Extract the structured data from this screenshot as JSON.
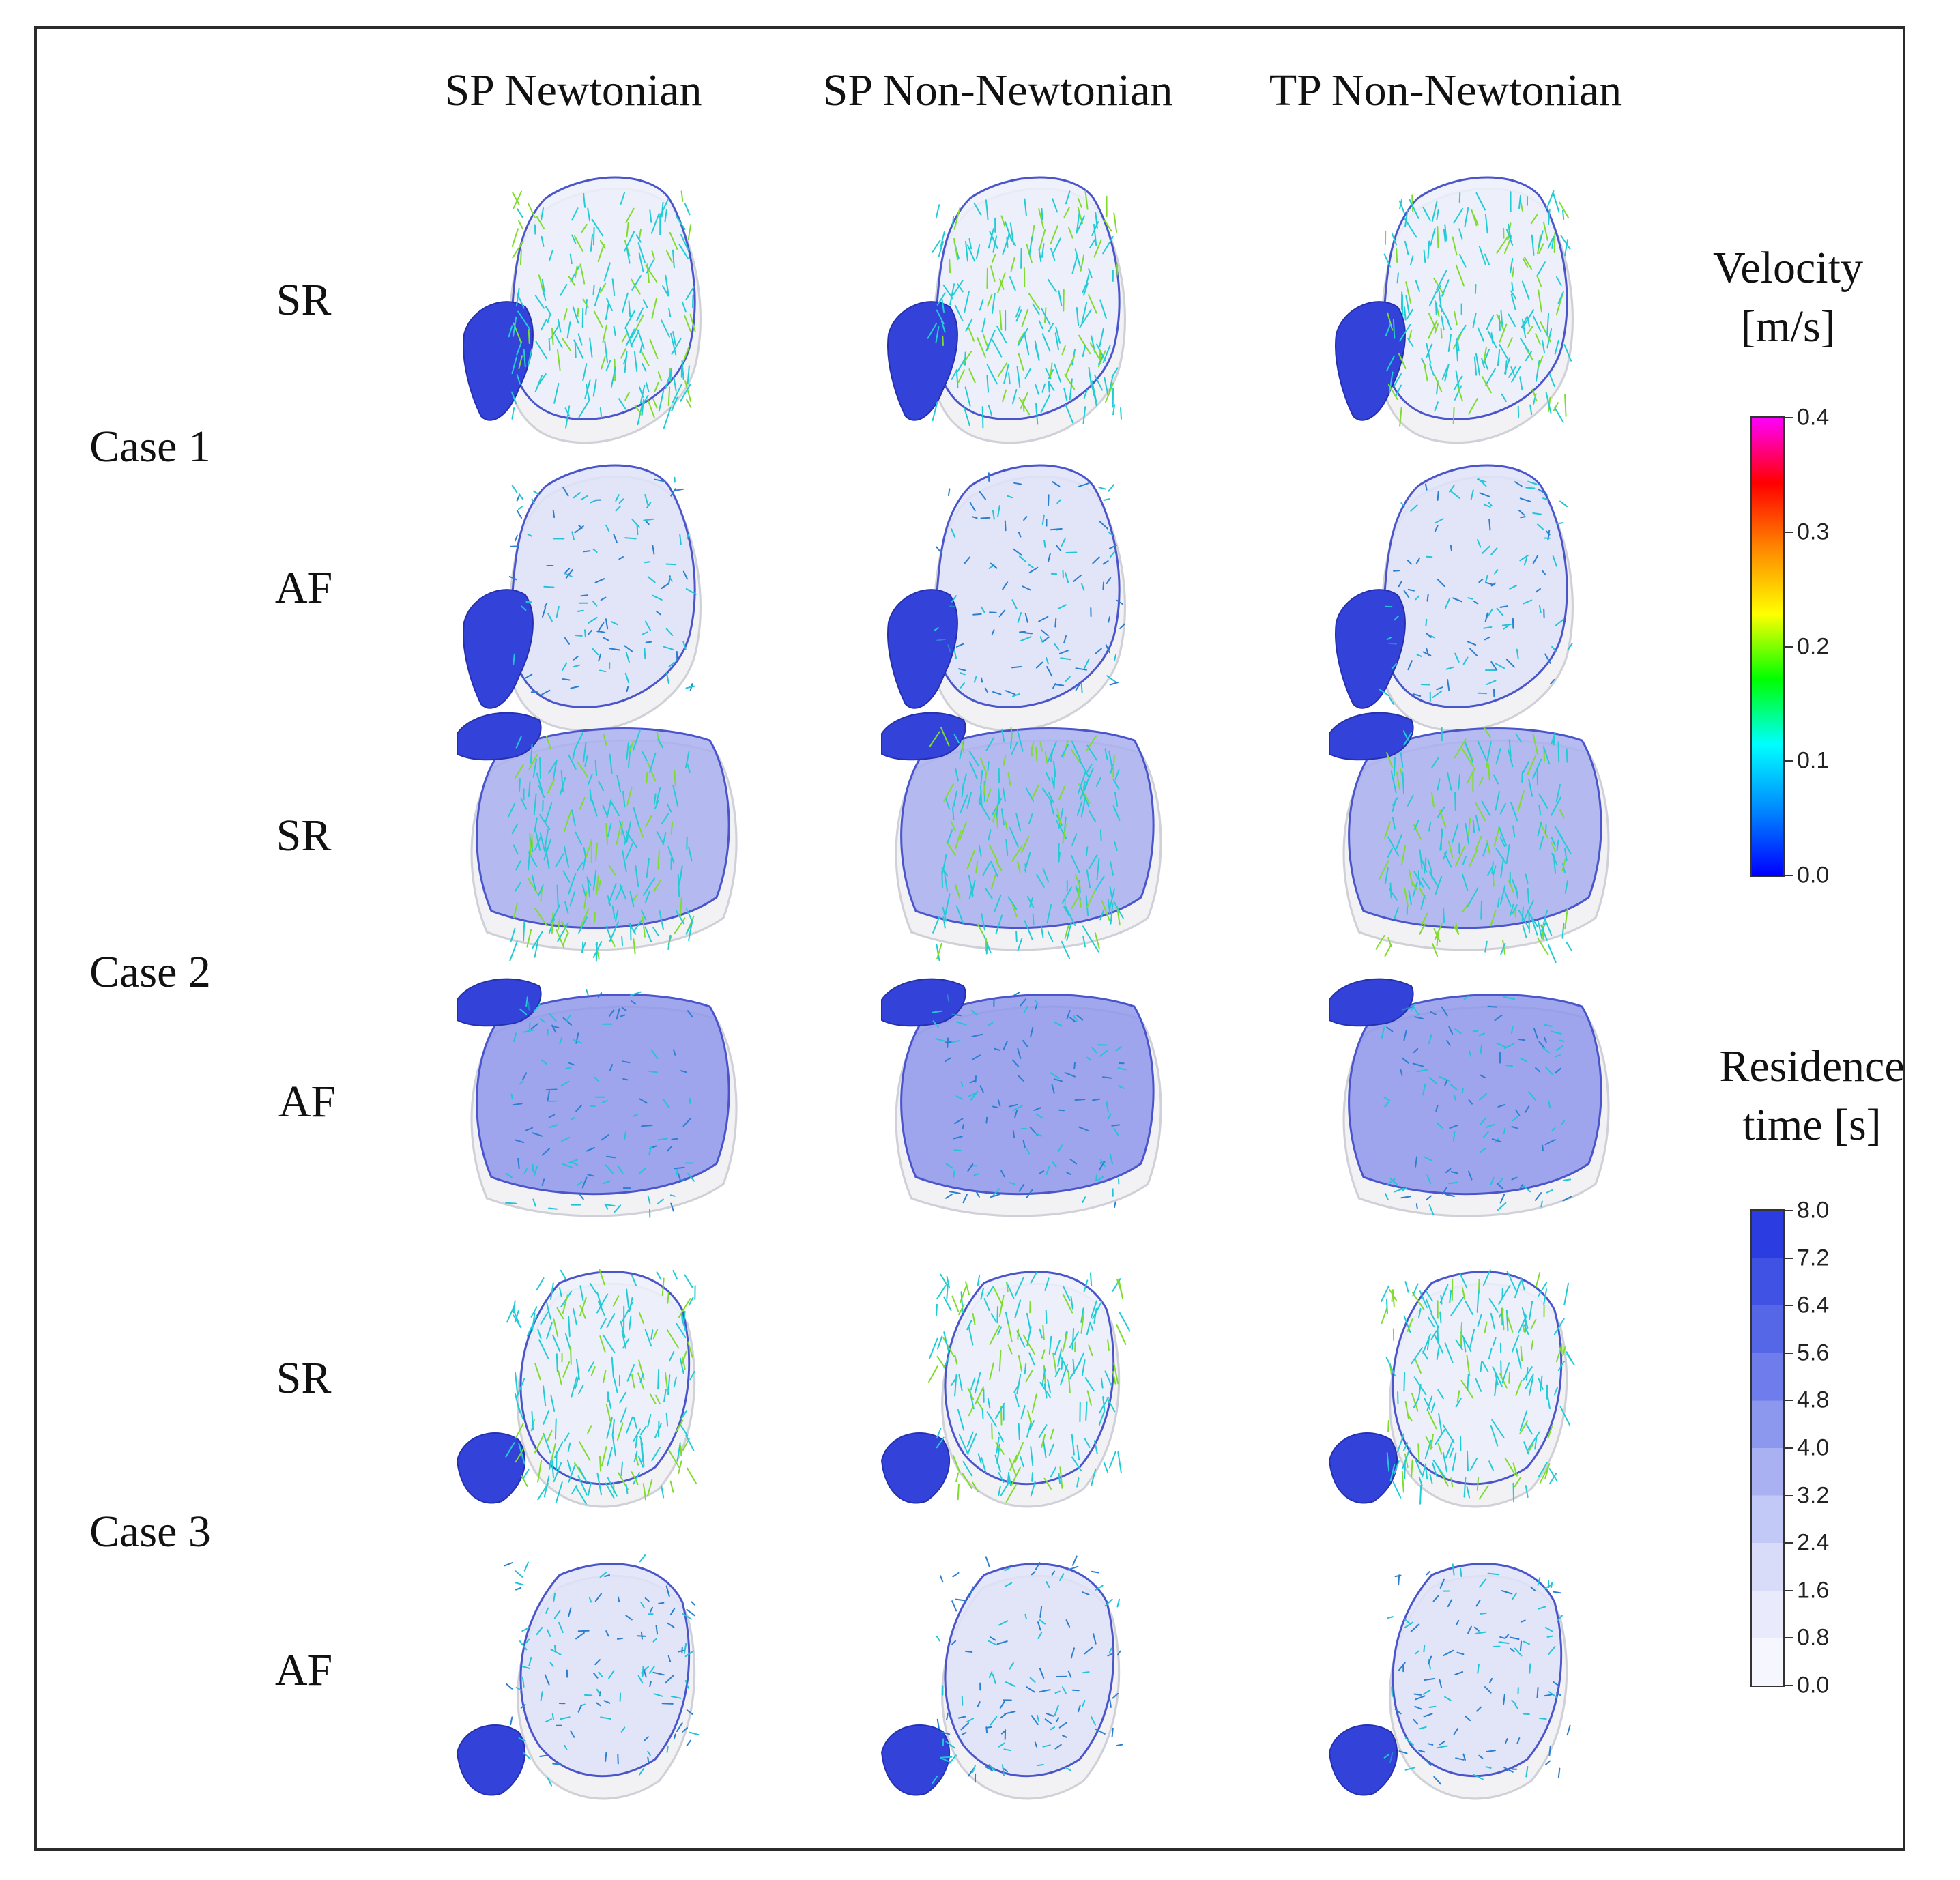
{
  "columns": [
    "SP Newtonian",
    "SP Non-Newtonian",
    "TP Non-Newtonian"
  ],
  "cases": [
    {
      "label": "Case 1",
      "rows": [
        "SR",
        "AF"
      ]
    },
    {
      "label": "Case 2",
      "rows": [
        "SR",
        "AF"
      ]
    },
    {
      "label": "Case 3",
      "rows": [
        "SR",
        "AF"
      ]
    }
  ],
  "colorbars": {
    "velocity": {
      "title_line1": "Velocity",
      "title_line2": "[m/s]",
      "ticks": [
        "0.4",
        "0.3",
        "0.2",
        "0.1",
        "0.0"
      ],
      "colors": [
        "#ff00ff",
        "#ff0000",
        "#ff8800",
        "#ffff00",
        "#00ff00",
        "#00ffff",
        "#0088ff",
        "#0000ff"
      ]
    },
    "residence": {
      "title_line1": "Residence",
      "title_line2": "time [s]",
      "ticks": [
        "8.0",
        "7.2",
        "6.4",
        "5.6",
        "4.8",
        "4.0",
        "3.2",
        "2.4",
        "1.6",
        "0.8",
        "0.0"
      ],
      "colors": [
        "#2b3de0",
        "#3f52e4",
        "#5566e6",
        "#6e7deb",
        "#8c97ee",
        "#a9b1f2",
        "#c3c9f6",
        "#d8dcf9",
        "#e9ebfc",
        "#f6f7fe"
      ]
    }
  },
  "colors": {
    "frame": "#2b2b2b",
    "atrium_blue": "#3344dd",
    "vector_cyan": "#22ccdd",
    "vector_green": "#66dd33"
  }
}
